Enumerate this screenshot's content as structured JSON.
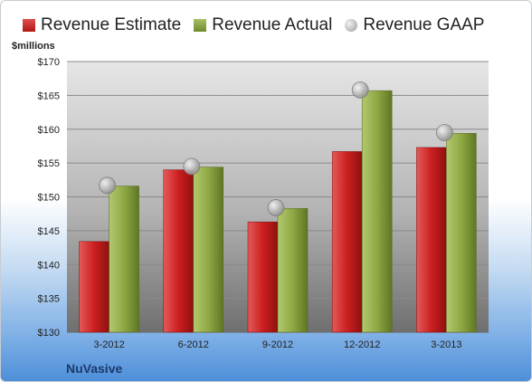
{
  "company": "NuVasive",
  "unit_label": "$millions",
  "colors": {
    "estimate": "#cc1f1f",
    "actual": "#8fa844",
    "gaap": "#bfbfbf"
  },
  "chart_data": {
    "type": "bar",
    "categories": [
      "3-2012",
      "6-2012",
      "9-2012",
      "12-2012",
      "3-2013"
    ],
    "series": [
      {
        "name": "Revenue Estimate",
        "type": "bar",
        "values": [
          143.4,
          154.0,
          146.3,
          156.7,
          157.3
        ]
      },
      {
        "name": "Revenue Actual",
        "type": "bar",
        "values": [
          151.6,
          154.4,
          148.3,
          165.7,
          159.4
        ]
      },
      {
        "name": "Revenue GAAP",
        "type": "marker",
        "values": [
          151.7,
          154.5,
          148.4,
          165.8,
          159.5
        ]
      }
    ],
    "ylim": [
      130,
      170
    ],
    "yticks": [
      "$130",
      "$135",
      "$140",
      "$145",
      "$150",
      "$155",
      "$160",
      "$165",
      "$170"
    ],
    "grid": true,
    "legend": "top"
  }
}
